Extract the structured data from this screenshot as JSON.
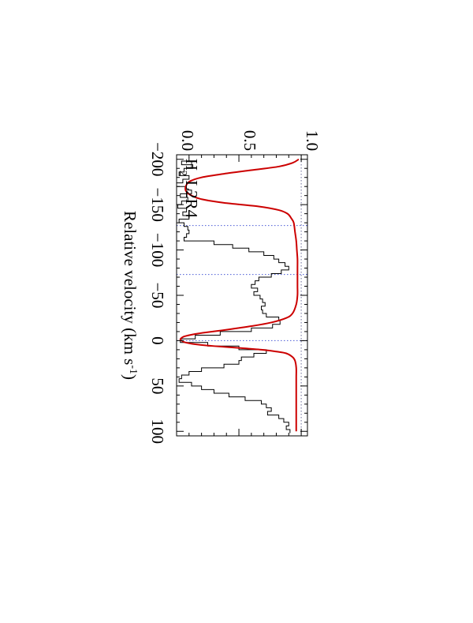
{
  "chart_data": {
    "type": "line",
    "orientation": "rotated-90-clockwise",
    "xlabel": "Relative velocity (km s",
    "xlabel_sup": "-1",
    "xlabel_end": ")",
    "xlim": [
      -205,
      105
    ],
    "ylim": [
      0.0,
      1.05
    ],
    "x_ticks": [
      -200,
      -150,
      -100,
      -50,
      0,
      50,
      100
    ],
    "x_tick_labels": [
      "−200",
      "−150",
      "−100",
      "−50",
      "0",
      "50",
      "100"
    ],
    "y_ticks": [
      0.0,
      0.5,
      1.0
    ],
    "y_tick_labels": [
      "0.0",
      "0.5",
      "1.0"
    ],
    "annotation": {
      "prefix": "H",
      "sub": "2",
      "suffix": " L2R4",
      "x": -168,
      "y": 0.86
    },
    "reference_lines": {
      "flux_levels": [
        0.0,
        1.0
      ],
      "velocities": [
        -127,
        -73,
        0
      ],
      "flux_color": "#6b6b9a",
      "velocity_color": "#4a5bd6"
    },
    "series": [
      {
        "style": "step",
        "color": "#000000",
        "x": [
          -200,
          -196,
          -192,
          -188,
          -184,
          -180,
          -176,
          -172,
          -168,
          -164,
          -160,
          -156,
          -152,
          -148,
          -144,
          -140,
          -136,
          -132,
          -128,
          -124,
          -120,
          -116,
          -112,
          -108,
          -104,
          -100,
          -96,
          -92,
          -88,
          -84,
          -80,
          -76,
          -72,
          -68,
          -64,
          -60,
          -56,
          -52,
          -48,
          -44,
          -40,
          -36,
          -32,
          -28,
          -24,
          -20,
          -16,
          -12,
          -8,
          -4,
          0,
          4,
          8,
          12,
          16,
          20,
          24,
          28,
          32,
          36,
          40,
          44,
          48,
          52,
          56,
          60,
          64,
          68,
          72,
          76,
          80,
          84,
          88,
          92,
          96,
          100
        ],
        "y": [
          0.1,
          0.04,
          0.13,
          0.06,
          0.02,
          0.1,
          0.05,
          0.0,
          0.07,
          0.12,
          0.03,
          0.09,
          0.04,
          0.01,
          0.08,
          0.05,
          0.1,
          0.02,
          0.06,
          0.09,
          0.1,
          0.08,
          0.06,
          0.3,
          0.45,
          0.58,
          0.7,
          0.78,
          0.82,
          0.87,
          0.9,
          0.84,
          0.76,
          0.66,
          0.63,
          0.6,
          0.65,
          0.62,
          0.67,
          0.69,
          0.71,
          0.68,
          0.69,
          0.72,
          0.82,
          0.83,
          0.77,
          0.6,
          0.35,
          0.15,
          0.03,
          0.25,
          0.5,
          0.72,
          0.62,
          0.52,
          0.5,
          0.38,
          0.2,
          0.1,
          0.04,
          0.02,
          0.12,
          0.2,
          0.3,
          0.42,
          0.55,
          0.68,
          0.72,
          0.76,
          0.73,
          0.82,
          0.86,
          0.9,
          0.88,
          0.91
        ]
      },
      {
        "style": "smooth",
        "color": "#cc0000",
        "x": [
          -200,
          -196,
          -192,
          -188,
          -184,
          -180,
          -176,
          -172,
          -168,
          -164,
          -160,
          -156,
          -152,
          -148,
          -144,
          -140,
          -135,
          -130,
          -120,
          -110,
          -100,
          -90,
          -80,
          -70,
          -60,
          -50,
          -40,
          -30,
          -25,
          -20,
          -16,
          -12,
          -8,
          -5,
          -3,
          -1,
          0,
          2,
          4,
          6,
          8,
          10,
          12,
          14,
          18,
          22,
          30,
          40,
          50,
          60,
          70,
          80,
          90,
          100
        ],
        "y": [
          0.98,
          0.93,
          0.82,
          0.6,
          0.38,
          0.2,
          0.11,
          0.08,
          0.07,
          0.08,
          0.12,
          0.2,
          0.38,
          0.66,
          0.82,
          0.89,
          0.92,
          0.94,
          0.95,
          0.96,
          0.965,
          0.97,
          0.97,
          0.97,
          0.97,
          0.97,
          0.96,
          0.93,
          0.88,
          0.76,
          0.6,
          0.4,
          0.18,
          0.07,
          0.04,
          0.03,
          0.04,
          0.07,
          0.15,
          0.3,
          0.5,
          0.68,
          0.8,
          0.88,
          0.93,
          0.95,
          0.96,
          0.96,
          0.96,
          0.96,
          0.96,
          0.96,
          0.96,
          0.96
        ]
      }
    ]
  }
}
